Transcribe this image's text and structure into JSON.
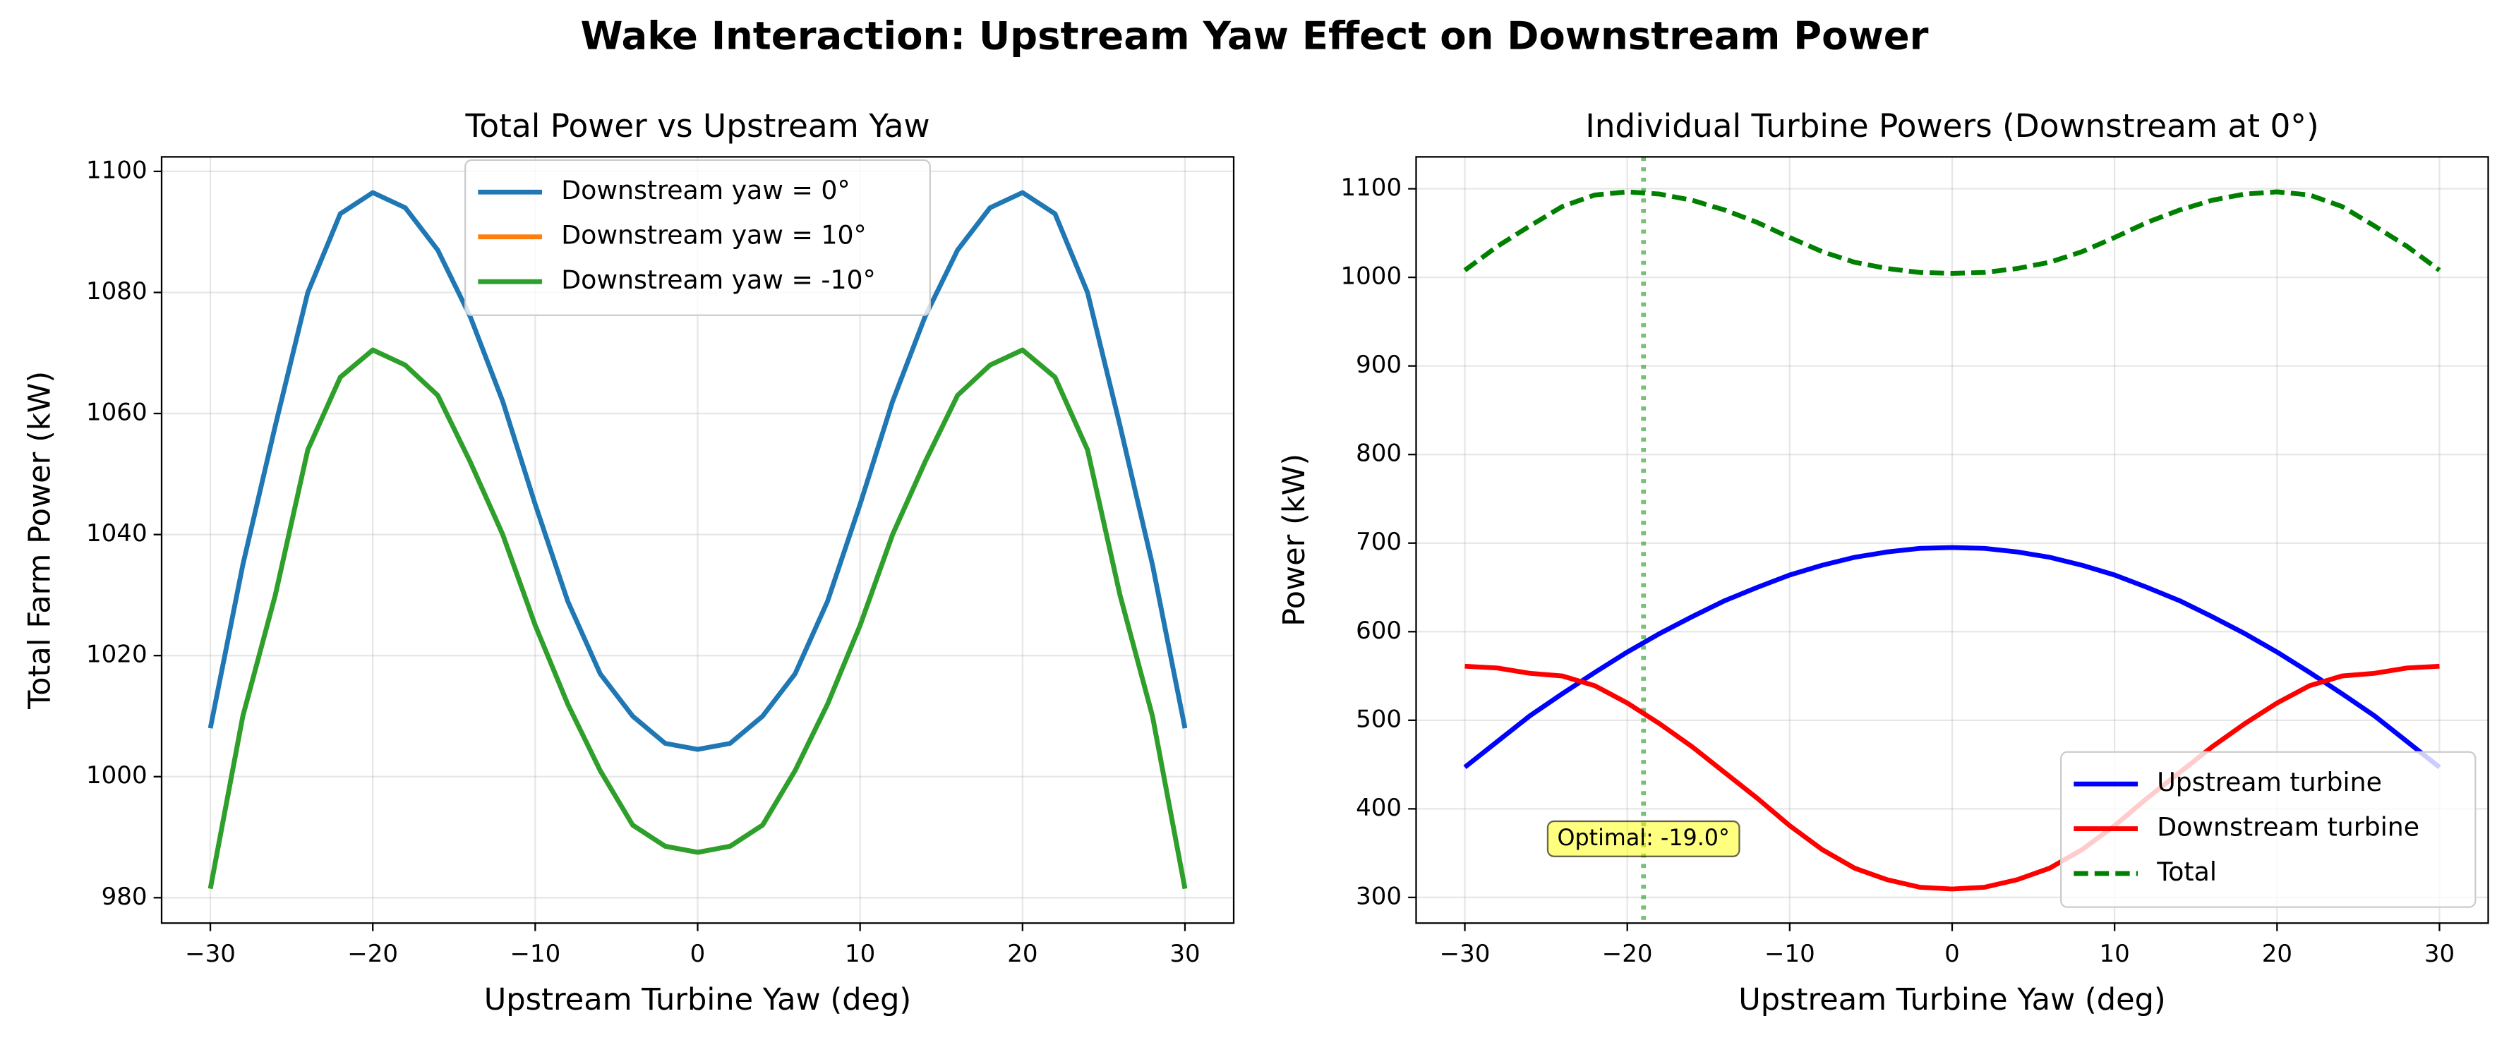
{
  "suptitle": "Wake Interaction: Upstream Yaw Effect on Downstream Power",
  "chart_data": [
    {
      "type": "line",
      "title": "Total Power vs Upstream Yaw",
      "xlabel": "Upstream Turbine Yaw (deg)",
      "ylabel": "Total Farm Power (kW)",
      "x": [
        -30,
        -28,
        -26,
        -24,
        -22,
        -20,
        -18,
        -16,
        -14,
        -12,
        -10,
        -8,
        -6,
        -4,
        -2,
        0,
        2,
        4,
        6,
        8,
        10,
        12,
        14,
        16,
        18,
        20,
        22,
        24,
        26,
        28,
        30
      ],
      "series": [
        {
          "name": "Downstream yaw = 0°",
          "color": "#1f77b4",
          "values": [
            1008,
            1035,
            1058,
            1080,
            1093,
            1096.5,
            1094,
            1087,
            1076,
            1062,
            1045,
            1029,
            1017,
            1010,
            1005.5,
            1004.5,
            1005.5,
            1010,
            1017,
            1029,
            1045,
            1062,
            1076,
            1087,
            1094,
            1096.5,
            1093,
            1080,
            1058,
            1035,
            1008
          ]
        },
        {
          "name": "Downstream yaw = 10°",
          "color": "#ff7f0e",
          "values": [
            981.5,
            1010,
            1030,
            1054,
            1066,
            1070.5,
            1068,
            1063,
            1052,
            1040,
            1025,
            1012,
            1001,
            992,
            988.5,
            987.5,
            988.5,
            992,
            1001,
            1012,
            1025,
            1040,
            1052,
            1063,
            1068,
            1070.5,
            1066,
            1054,
            1030,
            1010,
            981.5
          ]
        },
        {
          "name": "Downstream yaw = -10°",
          "color": "#2ca02c",
          "values": [
            981.5,
            1010,
            1030,
            1054,
            1066,
            1070.5,
            1068,
            1063,
            1052,
            1040,
            1025,
            1012,
            1001,
            992,
            988.5,
            987.5,
            988.5,
            992,
            1001,
            1012,
            1025,
            1040,
            1052,
            1063,
            1068,
            1070.5,
            1066,
            1054,
            1030,
            1010,
            981.5
          ]
        }
      ],
      "xlim": [
        -33,
        33
      ],
      "ylim": [
        975.8,
        1102.4
      ],
      "xticks": [
        {
          "value": -30,
          "label": "−30"
        },
        {
          "value": -20,
          "label": "−20"
        },
        {
          "value": -10,
          "label": "−10"
        },
        0,
        10,
        20,
        30
      ],
      "yticks": [
        980,
        1000,
        1020,
        1040,
        1060,
        1080,
        1100
      ],
      "grid": true,
      "legend": "upper center"
    },
    {
      "type": "line",
      "title": "Individual Turbine Powers (Downstream at 0°)",
      "xlabel": "Upstream Turbine Yaw (deg)",
      "ylabel": "Power (kW)",
      "x": [
        -30,
        -28,
        -26,
        -24,
        -22,
        -20,
        -18,
        -16,
        -14,
        -12,
        -10,
        -8,
        -6,
        -4,
        -2,
        0,
        2,
        4,
        6,
        8,
        10,
        12,
        14,
        16,
        18,
        20,
        22,
        24,
        26,
        28,
        30
      ],
      "series": [
        {
          "name": "Upstream turbine",
          "color": "#0000ff",
          "values": [
            447,
            476,
            505,
            530,
            554,
            577,
            598,
            617,
            635,
            650,
            664,
            675,
            684,
            690,
            694,
            695,
            694,
            690,
            684,
            675,
            664,
            650,
            635,
            617,
            598,
            577,
            554,
            530,
            505,
            476,
            447
          ]
        },
        {
          "name": "Downstream turbine",
          "color": "#ff0000",
          "values": [
            561,
            559,
            553,
            550,
            539,
            519.5,
            496,
            470,
            441,
            412,
            381,
            354,
            333,
            320,
            311.5,
            309.5,
            311.5,
            320,
            333,
            354,
            381,
            412,
            441,
            470,
            496,
            519.5,
            539,
            550,
            553,
            559,
            561
          ]
        },
        {
          "name": "Total",
          "color": "#008000",
          "linestyle": "dashed",
          "values": [
            1008,
            1035,
            1058,
            1080,
            1093,
            1096.5,
            1094,
            1087,
            1076,
            1062,
            1045,
            1029,
            1017,
            1010,
            1005.5,
            1004.5,
            1005.5,
            1010,
            1017,
            1029,
            1045,
            1062,
            1076,
            1087,
            1094,
            1096.5,
            1093,
            1080,
            1058,
            1035,
            1008
          ]
        }
      ],
      "xlim": [
        -33,
        33
      ],
      "ylim": [
        271,
        1136
      ],
      "xticks": [
        {
          "value": -30,
          "label": "−30"
        },
        {
          "value": -20,
          "label": "−20"
        },
        {
          "value": -10,
          "label": "−10"
        },
        0,
        10,
        20,
        30
      ],
      "yticks": [
        300,
        400,
        500,
        600,
        700,
        800,
        900,
        1000,
        1100
      ],
      "grid": true,
      "legend": "lower right",
      "vline": {
        "x": -19,
        "color": "#2ca02c",
        "linestyle": "dotted"
      },
      "annotation": "Optimal: -19.0°"
    }
  ]
}
